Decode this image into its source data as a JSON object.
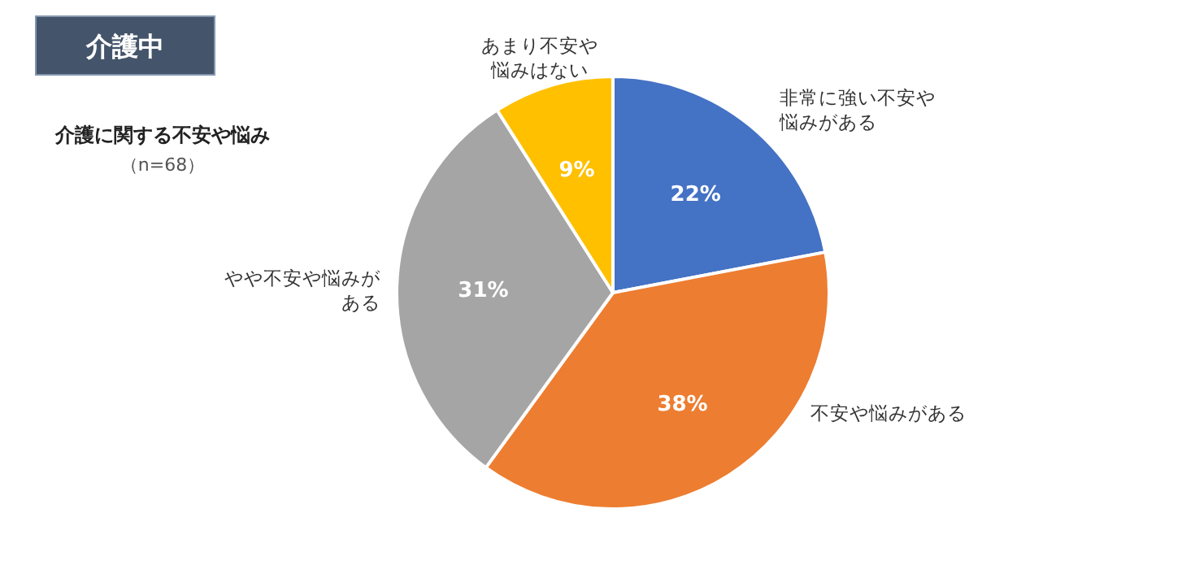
{
  "chart_data": {
    "type": "pie",
    "title": "介護中",
    "subtitle": "介護に関する不安や悩み",
    "annotations": [
      "（n=68）"
    ],
    "categories": [
      "非常に強い不安や悩みがある",
      "不安や悩みがある",
      "やや不安や悩みがある",
      "あまり不安や悩みはない"
    ],
    "values": [
      22,
      38,
      31,
      9
    ],
    "value_labels": [
      "22%",
      "38%",
      "31%",
      "9%"
    ],
    "colors": [
      "#4472c4",
      "#ed7d31",
      "#a5a5a5",
      "#ffc000"
    ]
  }
}
